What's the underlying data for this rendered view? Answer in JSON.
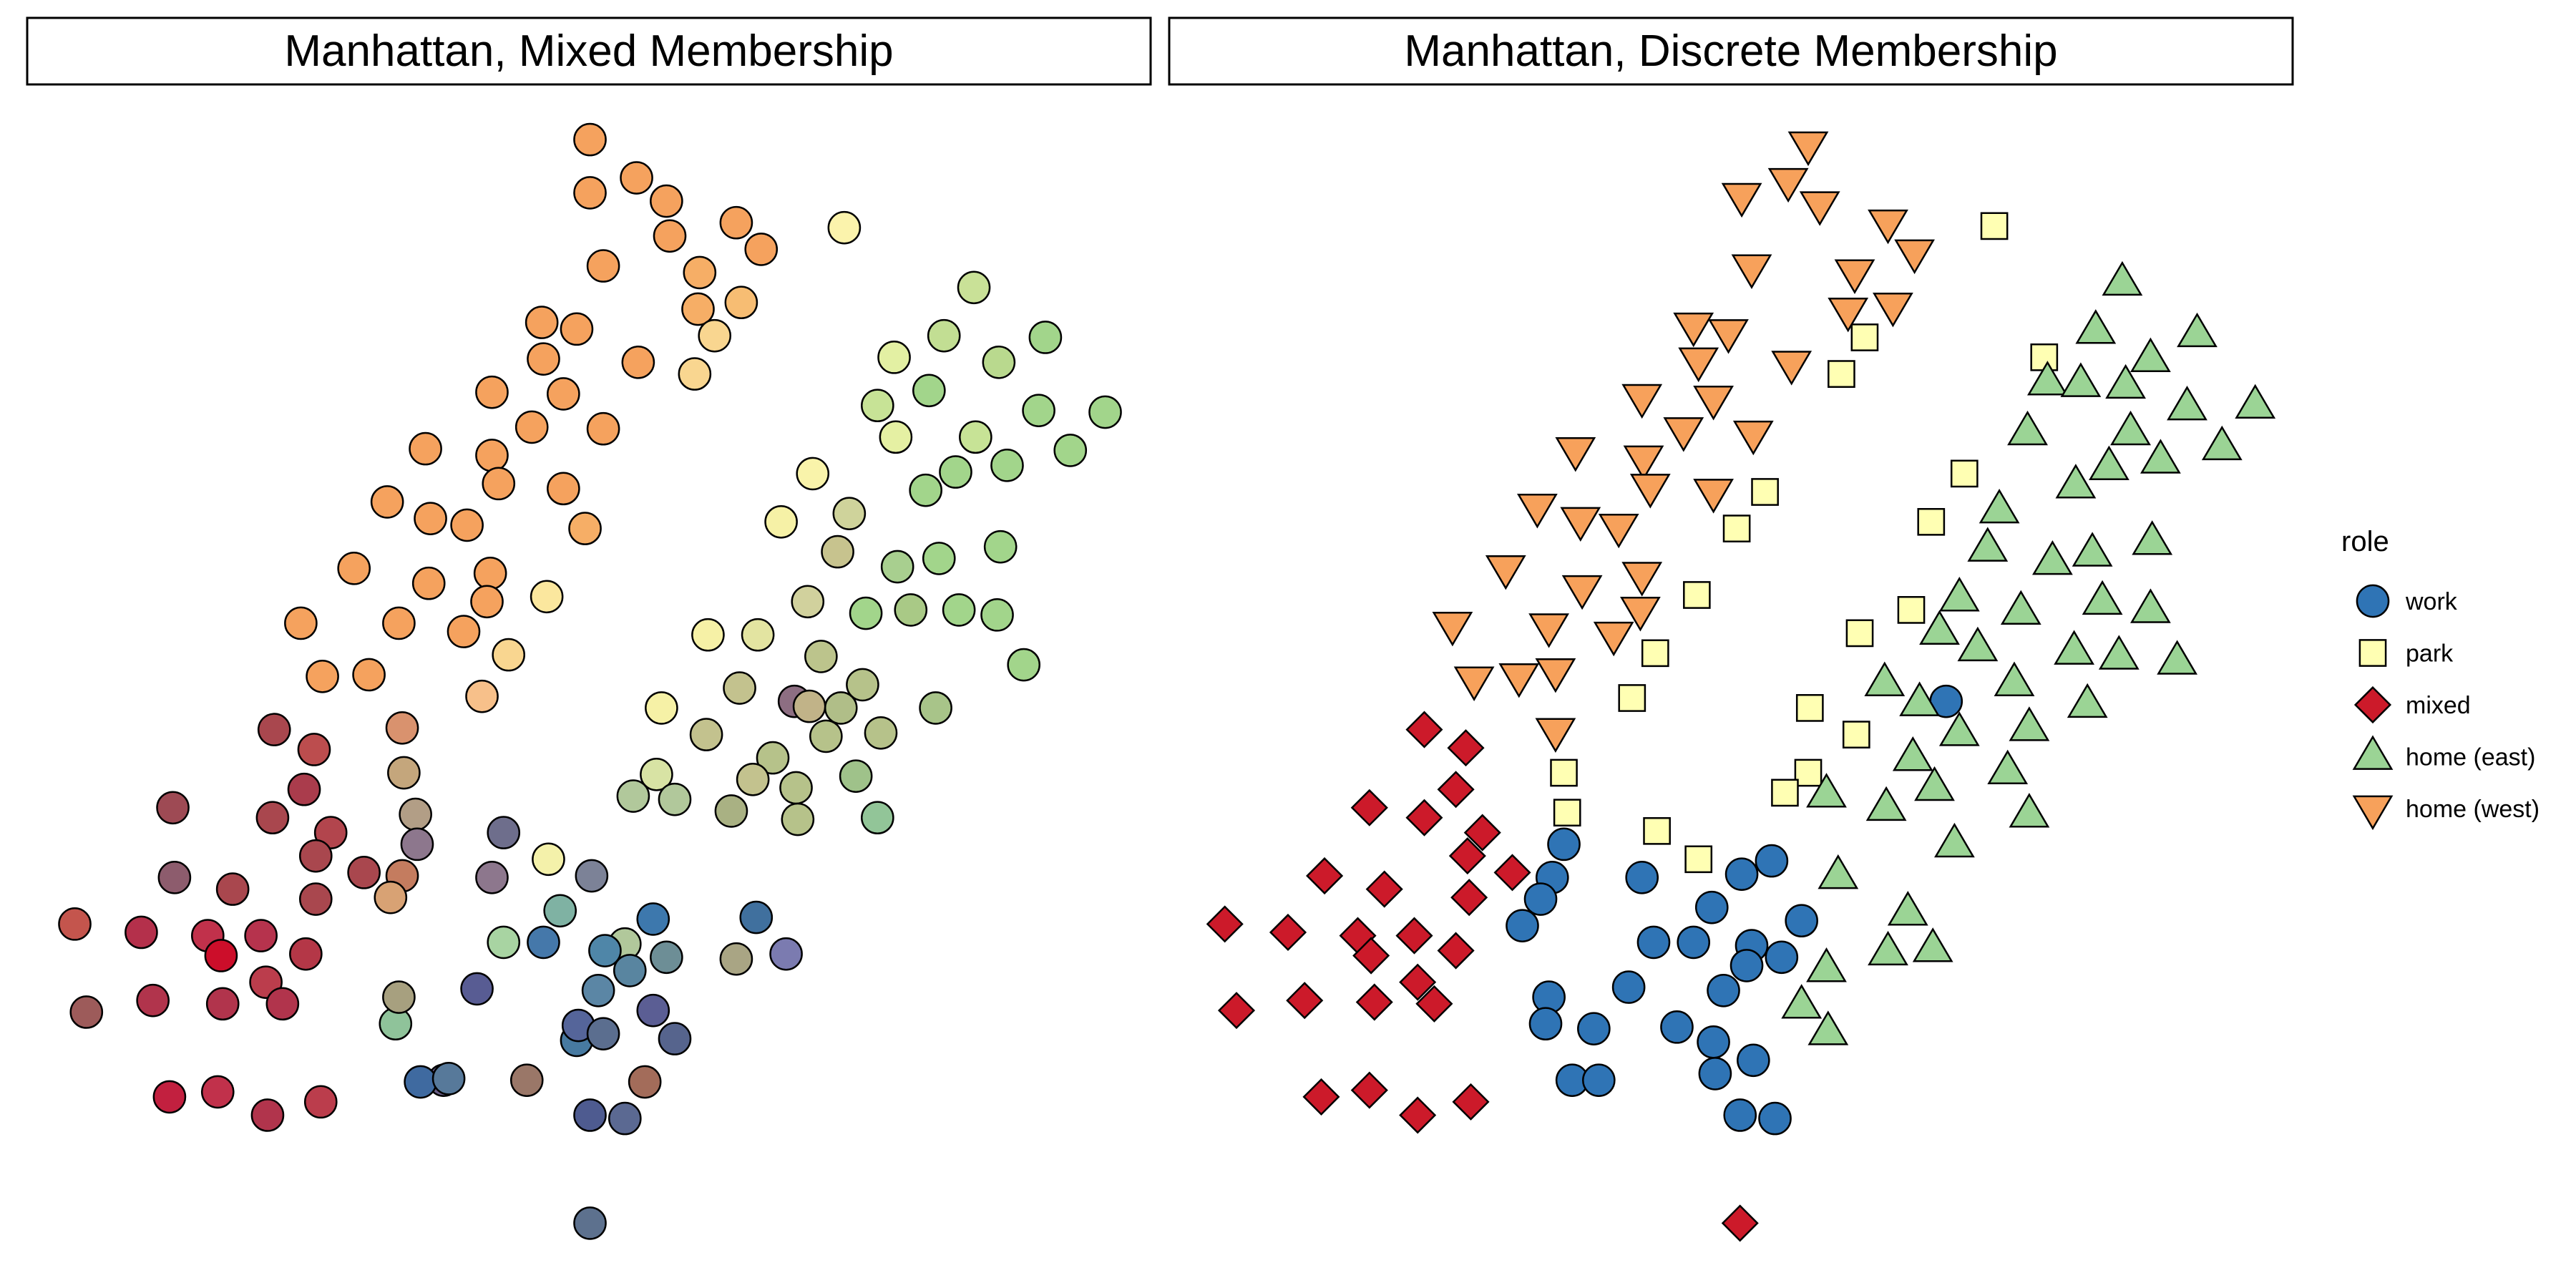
{
  "chart_data": [
    {
      "type": "scatter",
      "title": "Manhattan, Mixed Membership",
      "xlim": [
        0,
        1550
      ],
      "ylim": [
        0,
        760
      ],
      "grid": false,
      "x": [
        355,
        383,
        401,
        355,
        443,
        458,
        403,
        421,
        363,
        446,
        420,
        430,
        326,
        347,
        418,
        327,
        384,
        296,
        339,
        320,
        363,
        256,
        296,
        300,
        339,
        233,
        259,
        281,
        352,
        213,
        295,
        258,
        293,
        279,
        329,
        181,
        240,
        306,
        194,
        222,
        290,
        242,
        508,
        586,
        538,
        568,
        601,
        629,
        559,
        528,
        625,
        665,
        587,
        539,
        644,
        575,
        557,
        606,
        489,
        511,
        470,
        504,
        540,
        565,
        602,
        486,
        456,
        521,
        426,
        577,
        548,
        600,
        616,
        494,
        445,
        519,
        398,
        478,
        425,
        497,
        465,
        530,
        506,
        487,
        563,
        453,
        395,
        381,
        406,
        440,
        479,
        515,
        480,
        528,
        165,
        189,
        183,
        104,
        164,
        199,
        190,
        140,
        219,
        105,
        242,
        235,
        190,
        45,
        85,
        125,
        157,
        184,
        133,
        52,
        92,
        134,
        160,
        170,
        102,
        131,
        161,
        193,
        243,
        250,
        251,
        303,
        296,
        330,
        356,
        376,
        401,
        337,
        303,
        327,
        364,
        393,
        379,
        360,
        347,
        455,
        473,
        443,
        238,
        240,
        287,
        393,
        267,
        317,
        348,
        406,
        363,
        388,
        253,
        270,
        355,
        376,
        355
      ],
      "y": [
        84,
        107,
        121,
        116,
        134,
        150,
        142,
        164,
        160,
        182,
        186,
        202,
        194,
        198,
        225,
        216,
        218,
        236,
        237,
        257,
        258,
        270,
        274,
        291,
        294,
        302,
        312,
        316,
        318,
        342,
        345,
        351,
        362,
        380,
        359,
        375,
        375,
        394,
        407,
        406,
        419,
        438,
        137,
        173,
        215,
        202,
        218,
        203,
        235,
        244,
        247,
        248,
        263,
        263,
        271,
        284,
        295,
        280,
        285,
        309,
        314,
        332,
        341,
        336,
        329,
        362,
        382,
        369,
        382,
        367,
        367,
        370,
        400,
        395,
        414,
        412,
        426,
        422,
        442,
        443,
        456,
        441,
        426,
        425,
        426,
        469,
        466,
        479,
        481,
        488,
        474,
        467,
        493,
        492,
        439,
        451,
        475,
        486,
        492,
        501,
        515,
        535,
        525,
        528,
        527,
        540,
        541,
        556,
        561,
        563,
        563,
        574,
        575,
        609,
        602,
        604,
        591,
        604,
        660,
        657,
        671,
        663,
        465,
        490,
        508,
        501,
        528,
        517,
        527,
        568,
        576,
        548,
        567,
        567,
        572,
        553,
        584,
        596,
        626,
        552,
        574,
        577,
        616,
        600,
        595,
        608,
        650,
        650,
        617,
        625,
        622,
        651,
        651,
        649,
        671,
        673,
        736
      ],
      "color": [
        "#f5a25e",
        "#f5a25e",
        "#f5a25e",
        "#f5a25e",
        "#f5a25e",
        "#f5a25e",
        "#f5a25e",
        "#f6ae66",
        "#f5a25e",
        "#f7bd73",
        "#f6ae66",
        "#f9d690",
        "#f5a25e",
        "#f5a25e",
        "#f9d690",
        "#f5a25e",
        "#f5a25e",
        "#f5a25e",
        "#f5a25e",
        "#f5a25e",
        "#f5a25e",
        "#f5a25e",
        "#f5a25e",
        "#f5a25e",
        "#f5a25e",
        "#f5a25e",
        "#f5a25e",
        "#f5a25e",
        "#f6ae66",
        "#f5a25e",
        "#f5a25e",
        "#f5a25e",
        "#f5a25e",
        "#f5a25e",
        "#fbe79e",
        "#f5a25e",
        "#f5a25e",
        "#f9d690",
        "#f5a25e",
        "#f5a25e",
        "#f7c08a",
        "#d9926e",
        "#fbf3ac",
        "#c9e197",
        "#e3f0a3",
        "#c2de93",
        "#b9d98e",
        "#a2d58b",
        "#a2d58b",
        "#c7e396",
        "#a2d58b",
        "#a2d58b",
        "#c7e396",
        "#e5f0a3",
        "#a2d58b",
        "#a2d58b",
        "#a2d58b",
        "#a2d58b",
        "#f9f3aa",
        "#cfd39b",
        "#f6f1a6",
        "#c7c38e",
        "#a8cf8f",
        "#a2d58b",
        "#a2d58b",
        "#d1d19d",
        "#e3e4a1",
        "#a2d58b",
        "#f6f1a6",
        "#a2d58b",
        "#a9c986",
        "#a2d58b",
        "#a2d58b",
        "#bcc48c",
        "#c3c28e",
        "#b6c28a",
        "#f6f1a6",
        "#8d6e82",
        "#c3c28e",
        "#b6c28a",
        "#b6c28a",
        "#b6c28a",
        "#b0be88",
        "#c1b388",
        "#a8c489",
        "#c3c28e",
        "#d8e3a4",
        "#b1c89b",
        "#b1c89b",
        "#a9b183",
        "#b6c28a",
        "#9fc28a",
        "#b6c28a",
        "#92c598",
        "#a9474e",
        "#bc4d4e",
        "#aa3c4c",
        "#9e4a54",
        "#a9474e",
        "#b2454d",
        "#a9474e",
        "#a9474e",
        "#a9474e",
        "#8d5c6d",
        "#c47c5f",
        "#d8a274",
        "#a9474e",
        "#c4554d",
        "#b4304b",
        "#c1314b",
        "#b6334d",
        "#b43747",
        "#cc0e2a",
        "#9d5b5a",
        "#b1344c",
        "#b1344c",
        "#bb3d4c",
        "#b1344c",
        "#c2203f",
        "#c1314b",
        "#b1344c",
        "#bb3d4c",
        "#c4a67c",
        "#b29e86",
        "#8d778d",
        "#6e6e8c",
        "#8d778d",
        "#f4f1aa",
        "#7c8297",
        "#b1c89b",
        "#6d8e96",
        "#7fb2a3",
        "#a8d4a2",
        "#4578aa",
        "#4f86a8",
        "#3d78ad",
        "#5985a0",
        "#5b86a5",
        "#477aa1",
        "#40709e",
        "#7b7bb0",
        "#a9a584",
        "#8fc39a",
        "#a7a07f",
        "#585c93",
        "#5b5e94",
        "#695d86",
        "#9a7768",
        "#55659a",
        "#56648d",
        "#5b6e8f",
        "#a36c5a",
        "#3f6aa0",
        "#57799a",
        "#4e5b90",
        "#5b6992",
        "#5d718e",
        "#4d8ea5",
        "#c82433"
      ]
    },
    {
      "type": "scatter",
      "title": "Manhattan, Discrete Membership",
      "xlim": [
        0,
        1550
      ],
      "ylim": [
        0,
        760
      ],
      "grid": false,
      "legend_title": "role",
      "legend_position": "right",
      "legend": [
        {
          "label": "work",
          "shape": "circle",
          "color": "#2f74b5"
        },
        {
          "label": "park",
          "shape": "square",
          "color": "#ffffb3"
        },
        {
          "label": "mixed",
          "shape": "diamond",
          "color": "#cc1a2a"
        },
        {
          "label": "home (east)",
          "shape": "triangle-up",
          "color": "#9bd495"
        },
        {
          "label": "home (west)",
          "shape": "triangle-down",
          "color": "#f7a15b"
        }
      ],
      "series": [
        {
          "name": "work",
          "x": [
            1171,
            941,
            934,
            927,
            916,
            988,
            1048,
            1066,
            1030,
            1084,
            995,
            1019,
            1054,
            1072,
            980,
            1037,
            1051,
            932,
            930,
            1009,
            959,
            1031,
            1055,
            1032,
            946,
            962,
            1047,
            1068
          ],
          "y": [
            422,
            508,
            528,
            541,
            557,
            528,
            526,
            518,
            546,
            554,
            567,
            567,
            569,
            576,
            594,
            596,
            581,
            600,
            616,
            618,
            619,
            627,
            638,
            646,
            650,
            650,
            671,
            673
          ]
        },
        {
          "name": "park",
          "x": [
            1200,
            1230,
            1122,
            1108,
            1182,
            1062,
            1045,
            1162,
            1021,
            1150,
            1119,
            996,
            982,
            1089,
            1117,
            941,
            1088,
            1074,
            943,
            997,
            1022
          ],
          "y": [
            136,
            215,
            203,
            225,
            285,
            296,
            318,
            314,
            358,
            367,
            381,
            393,
            420,
            426,
            442,
            465,
            465,
            477,
            489,
            500,
            517
          ]
        },
        {
          "name": "mixed",
          "x": [
            857,
            882,
            876,
            824,
            857,
            892,
            883,
            910,
            797,
            833,
            884,
            737,
            775,
            817,
            851,
            825,
            876,
            744,
            785,
            827,
            853,
            863,
            795,
            824,
            853,
            885,
            1047
          ],
          "y": [
            439,
            450,
            475,
            486,
            492,
            501,
            515,
            525,
            527,
            535,
            540,
            556,
            561,
            563,
            563,
            575,
            572,
            608,
            602,
            603,
            591,
            604,
            660,
            656,
            671,
            663,
            736
          ]
        },
        {
          "name": "home (east)",
          "x": [
            1277,
            1261,
            1322,
            1294,
            1232,
            1252,
            1279,
            1357,
            1316,
            1220,
            1282,
            1337,
            1249,
            1269,
            1300,
            1203,
            1196,
            1235,
            1259,
            1295,
            1179,
            1167,
            1216,
            1190,
            1265,
            1294,
            1248,
            1275,
            1310,
            1134,
            1212,
            1155,
            1179,
            1221,
            1256,
            1151,
            1208,
            1099,
            1164,
            1135,
            1221,
            1176,
            1106,
            1148,
            1136,
            1163,
            1084,
            1099,
            1100
          ],
          "y": [
            170,
            199,
            201,
            216,
            230,
            231,
            232,
            244,
            245,
            260,
            260,
            269,
            292,
            281,
            277,
            307,
            330,
            338,
            333,
            326,
            360,
            380,
            368,
            390,
            362,
            367,
            392,
            395,
            398,
            411,
            411,
            423,
            441,
            438,
            424,
            456,
            464,
            478,
            474,
            486,
            490,
            508,
            527,
            549,
            573,
            571,
            605,
            583,
            621
          ]
        },
        {
          "name": "home (west)",
          "x": [
            1088,
            1076,
            1048,
            1095,
            1136,
            1116,
            1152,
            1054,
            1139,
            1112,
            1019,
            1040,
            1022,
            1078,
            1031,
            988,
            1013,
            1055,
            948,
            989,
            993,
            1031,
            925,
            951,
            974,
            988,
            906,
            952,
            987,
            874,
            932,
            971,
            914,
            936,
            887,
            936
          ],
          "y": [
            87,
            109,
            118,
            123,
            134,
            164,
            152,
            161,
            184,
            187,
            196,
            200,
            217,
            219,
            240,
            239,
            259,
            261,
            271,
            276,
            293,
            296,
            305,
            313,
            317,
            346,
            342,
            354,
            367,
            376,
            377,
            382,
            407,
            404,
            409,
            440
          ]
        }
      ]
    }
  ]
}
